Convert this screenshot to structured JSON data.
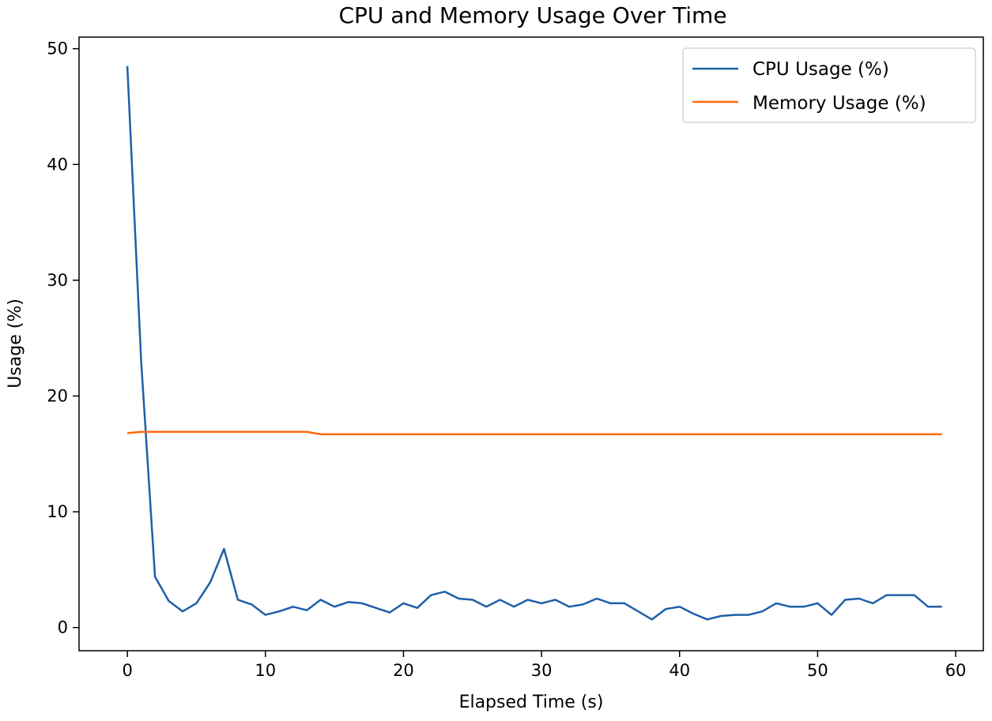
{
  "chart_data": {
    "type": "line",
    "title": "CPU and Memory Usage Over Time",
    "xlabel": "Elapsed Time (s)",
    "ylabel": "Usage (%)",
    "xlim": [
      -3.5,
      62
    ],
    "ylim": [
      -2,
      51
    ],
    "xticks": [
      0,
      10,
      20,
      30,
      40,
      50,
      60
    ],
    "yticks": [
      0,
      10,
      20,
      30,
      40,
      50
    ],
    "grid": false,
    "legend_position": "top-right",
    "x": [
      0,
      1,
      2,
      3,
      4,
      5,
      6,
      7,
      8,
      9,
      10,
      11,
      12,
      13,
      14,
      15,
      16,
      17,
      18,
      19,
      20,
      21,
      22,
      23,
      24,
      25,
      26,
      27,
      28,
      29,
      30,
      31,
      32,
      33,
      34,
      35,
      36,
      37,
      38,
      39,
      40,
      41,
      42,
      43,
      44,
      45,
      46,
      47,
      48,
      49,
      50,
      51,
      52,
      53,
      54,
      55,
      56,
      57,
      58,
      59
    ],
    "series": [
      {
        "name": "CPU Usage (%)",
        "color": "#1f5fa8",
        "values": [
          48.5,
          23.0,
          4.4,
          2.3,
          1.4,
          2.1,
          3.9,
          6.8,
          2.4,
          2.0,
          1.1,
          1.4,
          1.8,
          1.5,
          2.4,
          1.8,
          2.2,
          2.1,
          1.7,
          1.3,
          2.1,
          1.7,
          2.8,
          3.1,
          2.5,
          2.4,
          1.8,
          2.4,
          1.8,
          2.4,
          2.1,
          2.4,
          1.8,
          2.0,
          2.5,
          2.1,
          2.1,
          1.4,
          0.7,
          1.6,
          1.8,
          1.2,
          0.7,
          1.0,
          1.1,
          1.1,
          1.4,
          2.1,
          1.8,
          1.8,
          2.1,
          1.1,
          2.4,
          2.5,
          2.1,
          2.8,
          2.8,
          2.8,
          1.8,
          1.8
        ]
      },
      {
        "name": "Memory Usage (%)",
        "color": "#ff6a0d",
        "values": [
          16.8,
          16.9,
          16.9,
          16.9,
          16.9,
          16.9,
          16.9,
          16.9,
          16.9,
          16.9,
          16.9,
          16.9,
          16.9,
          16.9,
          16.7,
          16.7,
          16.7,
          16.7,
          16.7,
          16.7,
          16.7,
          16.7,
          16.7,
          16.7,
          16.7,
          16.7,
          16.7,
          16.7,
          16.7,
          16.7,
          16.7,
          16.7,
          16.7,
          16.7,
          16.7,
          16.7,
          16.7,
          16.7,
          16.7,
          16.7,
          16.7,
          16.7,
          16.7,
          16.7,
          16.7,
          16.7,
          16.7,
          16.7,
          16.7,
          16.7,
          16.7,
          16.7,
          16.7,
          16.7,
          16.7,
          16.7,
          16.7,
          16.7,
          16.7,
          16.7
        ]
      }
    ]
  }
}
